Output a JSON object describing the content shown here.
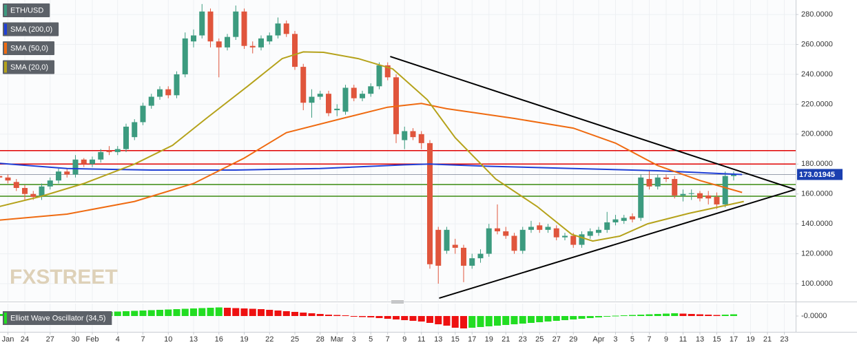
{
  "chart_data": [
    {
      "type": "candlestick",
      "title": "ETH/USD",
      "up_color": "#3c9b7f",
      "down_color": "#e0553c",
      "x": [
        -3,
        -2,
        -1,
        0,
        1,
        2,
        3,
        4,
        5,
        6,
        7,
        8,
        9,
        10,
        11,
        12,
        13,
        14,
        15,
        16,
        17,
        18,
        19,
        20,
        21,
        22,
        23,
        24,
        25,
        26,
        27,
        28,
        29,
        30,
        31,
        32,
        33,
        34,
        35,
        36,
        37,
        38,
        39,
        40,
        41,
        42,
        43,
        44,
        45,
        46,
        47,
        48,
        49,
        50,
        51,
        52,
        53,
        54,
        55,
        56,
        57,
        58,
        59,
        60,
        61,
        62,
        63,
        64,
        65,
        66,
        67,
        68,
        69,
        70,
        71,
        72,
        73,
        74,
        75,
        76,
        77,
        78,
        79,
        80,
        81,
        82,
        83,
        84
      ],
      "open": [
        172,
        171,
        168,
        164,
        160,
        158,
        165,
        169,
        175,
        173,
        183,
        180,
        183,
        189,
        188,
        190,
        198,
        208,
        219,
        225,
        230,
        226,
        240,
        262,
        266,
        282,
        262,
        258,
        265,
        282,
        259,
        258,
        262,
        266,
        274,
        267,
        245,
        221,
        225,
        227,
        216,
        215,
        231,
        224,
        227,
        232,
        246,
        238,
        196,
        202,
        200,
        194,
        136,
        122,
        126,
        124,
        112,
        117,
        120,
        137,
        135,
        132,
        122,
        136,
        139,
        136,
        137,
        131,
        132,
        126,
        132,
        134,
        136,
        141,
        142,
        145,
        144,
        170,
        165,
        171,
        170,
        159,
        160,
        160.5,
        159,
        158,
        153,
        172
      ],
      "high": [
        174,
        173,
        170,
        166,
        162,
        167,
        171,
        177,
        177,
        186,
        184,
        185,
        190,
        192,
        192,
        207,
        210,
        221,
        227,
        232,
        232,
        242,
        268,
        270,
        287,
        284,
        264,
        267,
        286,
        284,
        262,
        266,
        268,
        278,
        276,
        269,
        247,
        230,
        229,
        229,
        220,
        233,
        233,
        229,
        234,
        248,
        248,
        240,
        205,
        204,
        202,
        196,
        138,
        138,
        130,
        126,
        120,
        123,
        140,
        153,
        138,
        134,
        138,
        142,
        141,
        140,
        139,
        134,
        134,
        135,
        137,
        138,
        148,
        146,
        146,
        147,
        173,
        176,
        173,
        173,
        172,
        163,
        163,
        162,
        162,
        161,
        175,
        175
      ],
      "low": [
        169,
        167,
        162,
        156,
        156,
        156,
        163,
        167,
        171,
        171,
        178,
        178,
        181,
        186,
        186,
        188,
        196,
        206,
        217,
        223,
        224,
        224,
        238,
        258,
        264,
        258,
        238,
        256,
        263,
        257,
        254,
        256,
        260,
        264,
        265,
        243,
        216,
        211,
        223,
        212,
        212,
        213,
        222,
        222,
        225,
        230,
        236,
        194,
        190,
        196,
        190,
        110,
        100,
        120,
        120,
        101,
        110,
        114,
        118,
        133,
        130,
        120,
        120,
        134,
        134,
        134,
        129,
        129,
        124,
        124,
        130,
        132,
        134,
        139,
        140,
        141,
        142,
        163,
        163,
        168,
        157,
        155,
        156,
        155,
        153,
        150,
        151,
        169
      ],
      "close": [
        171,
        169,
        164,
        160,
        158,
        165,
        169,
        175,
        173,
        183,
        180,
        183,
        188,
        188,
        190,
        205,
        208,
        219,
        225,
        230,
        226,
        240,
        264,
        266,
        282,
        262,
        258,
        265,
        282,
        259,
        258,
        264,
        266,
        274,
        267,
        245,
        221,
        225,
        227,
        214,
        217,
        231,
        224,
        227,
        232,
        246,
        238,
        200,
        202,
        198,
        194,
        113,
        112,
        136,
        124,
        112,
        117,
        120,
        137,
        135,
        132,
        122,
        136,
        138,
        136,
        138,
        131,
        132,
        126,
        133,
        135,
        136,
        141,
        143,
        144,
        143,
        171,
        165,
        171,
        170,
        159,
        160,
        160.5,
        157,
        157,
        153,
        172,
        173
      ],
      "series": [
        {
          "name": "SMA (200,0)",
          "color": "#1f3fd6",
          "x": [
            -3,
            5,
            15,
            25,
            35,
            45,
            48,
            55,
            65,
            75,
            85
          ],
          "values": [
            180.5,
            177,
            176,
            176,
            177,
            179.5,
            180,
            178.5,
            177,
            175.5,
            173
          ]
        },
        {
          "name": "SMA (50,0)",
          "color": "#ef6a10",
          "x": [
            -3,
            5,
            13,
            20,
            26,
            31,
            38,
            43,
            47,
            50,
            58,
            65,
            70,
            75,
            80,
            85
          ],
          "values": [
            142.5,
            146.5,
            155,
            167,
            184,
            201,
            211,
            218,
            220.5,
            217,
            210.5,
            204,
            194,
            179,
            169,
            161
          ]
        },
        {
          "name": "SMA (20,0)",
          "color": "#b5a21a",
          "x": [
            -3,
            2,
            7,
            13,
            17.5,
            21.5,
            26.4,
            30.5,
            33,
            35.4,
            39.5,
            43.6,
            47.7,
            51,
            55.8,
            60.7,
            64.8,
            67.3,
            70.5,
            73.8,
            78.7,
            85.2
          ],
          "values": [
            151.6,
            158.5,
            167,
            180,
            192.5,
            210.5,
            232,
            250.5,
            255,
            254.7,
            250.5,
            243.6,
            223,
            197.6,
            170,
            151.6,
            133,
            128.5,
            131.8,
            140,
            147,
            155
          ]
        }
      ],
      "hlines": [
        {
          "value": 189,
          "color": "#e00000"
        },
        {
          "value": 180,
          "color": "#e00000"
        },
        {
          "value": 166.3,
          "color": "#3b8a10"
        },
        {
          "value": 158.5,
          "color": "#3b8a10"
        }
      ],
      "trendlines": [
        {
          "x": [
            43.3,
            91.3
          ],
          "y": [
            251.9,
            163
          ],
          "color": "#000000"
        },
        {
          "x": [
            49.1,
            91.3
          ],
          "y": [
            90.3,
            163
          ],
          "color": "#000000"
        }
      ],
      "last_price": 173.01945,
      "last_price_color": "#1a3fb0",
      "xlim": [
        -2.94,
        91.35
      ],
      "ylim": [
        88.5,
        289.7
      ],
      "yticks": [
        {
          "value": 100,
          "label": "100.0000"
        },
        {
          "value": 120,
          "label": "120.0000"
        },
        {
          "value": 140,
          "label": "140.0000"
        },
        {
          "value": 160,
          "label": "160.0000"
        },
        {
          "value": 180,
          "label": "180.0000"
        },
        {
          "value": 200,
          "label": "200.0000"
        },
        {
          "value": 220,
          "label": "220.0000"
        },
        {
          "value": 240,
          "label": "240.0000"
        },
        {
          "value": 260,
          "label": "260.0000"
        },
        {
          "value": 280,
          "label": "280.0000"
        }
      ],
      "xticks": [
        {
          "value": -2,
          "label": "Jan"
        },
        {
          "value": 0,
          "label": "24"
        },
        {
          "value": 3,
          "label": "27"
        },
        {
          "value": 6,
          "label": "30"
        },
        {
          "value": 8,
          "label": "Feb"
        },
        {
          "value": 11,
          "label": "4"
        },
        {
          "value": 14,
          "label": "7"
        },
        {
          "value": 17,
          "label": "10"
        },
        {
          "value": 20,
          "label": "13"
        },
        {
          "value": 23,
          "label": "16"
        },
        {
          "value": 26,
          "label": "19"
        },
        {
          "value": 29,
          "label": "22"
        },
        {
          "value": 32,
          "label": "25"
        },
        {
          "value": 35,
          "label": "28"
        },
        {
          "value": 37,
          "label": "Mar"
        },
        {
          "value": 39,
          "label": "3"
        },
        {
          "value": 41,
          "label": "5"
        },
        {
          "value": 43,
          "label": "7"
        },
        {
          "value": 45,
          "label": "9"
        },
        {
          "value": 47,
          "label": "11"
        },
        {
          "value": 49,
          "label": "13"
        },
        {
          "value": 51,
          "label": "15"
        },
        {
          "value": 53,
          "label": "17"
        },
        {
          "value": 55,
          "label": "19"
        },
        {
          "value": 57,
          "label": "21"
        },
        {
          "value": 59,
          "label": "23"
        },
        {
          "value": 61,
          "label": "25"
        },
        {
          "value": 63,
          "label": "27"
        },
        {
          "value": 65,
          "label": "29"
        },
        {
          "value": 68,
          "label": "Apr"
        },
        {
          "value": 70,
          "label": "3"
        },
        {
          "value": 72,
          "label": "5"
        },
        {
          "value": 74,
          "label": "7"
        },
        {
          "value": 76,
          "label": "9"
        },
        {
          "value": 78,
          "label": "11"
        },
        {
          "value": 80,
          "label": "13"
        },
        {
          "value": 82,
          "label": "15"
        },
        {
          "value": 84,
          "label": "17"
        },
        {
          "value": 86,
          "label": "19"
        },
        {
          "value": 88,
          "label": "21"
        },
        {
          "value": 90,
          "label": "23"
        }
      ],
      "grid": true,
      "watermark": "FXSTREET"
    },
    {
      "type": "bar",
      "title": "Elliott Wave Oscillator (34,5)",
      "up_color": "#22dd22",
      "down_color": "#ee1111",
      "x": [
        -3,
        -2,
        -1,
        0,
        1,
        2,
        3,
        4,
        5,
        6,
        7,
        8,
        9,
        10,
        11,
        12,
        13,
        14,
        15,
        16,
        17,
        18,
        19,
        20,
        21,
        22,
        23,
        24,
        25,
        26,
        27,
        28,
        29,
        30,
        31,
        32,
        33,
        34,
        35,
        36,
        37,
        38,
        39,
        40,
        41,
        42,
        43,
        44,
        45,
        46,
        47,
        48,
        49,
        50,
        51,
        52,
        53,
        54,
        55,
        56,
        57,
        58,
        59,
        60,
        61,
        62,
        63,
        64,
        65,
        66,
        67,
        68,
        69,
        70,
        71,
        72,
        73,
        74,
        75,
        76,
        77,
        78,
        79,
        80,
        81,
        82,
        83,
        84
      ],
      "values": [
        3,
        2.5,
        2,
        1.5,
        1.5,
        2,
        2.5,
        3,
        3.5,
        4,
        4.5,
        5,
        5.5,
        6,
        6.5,
        7,
        7.5,
        8,
        8.5,
        9,
        9.5,
        10,
        10.5,
        11,
        11.5,
        12,
        12.5,
        12,
        11.5,
        11,
        10.5,
        10,
        9,
        8,
        7,
        6,
        5,
        4,
        3,
        2,
        1.5,
        1,
        -1,
        -1.5,
        -2,
        -3,
        -4,
        -5,
        -6,
        -7,
        -8,
        -10,
        -12,
        -14,
        -17,
        -18,
        -17,
        -16,
        -15,
        -14,
        -13,
        -12,
        -11,
        -10,
        -9,
        -8,
        -7,
        -6,
        -5,
        -4,
        -3,
        -2,
        -1,
        0.5,
        1,
        1.5,
        2,
        2.5,
        3,
        3.5,
        4,
        3.5,
        3,
        2.5,
        2,
        1.5,
        2,
        2.5
      ],
      "ylim": [
        -20,
        15
      ],
      "yticks": [
        {
          "value": 0,
          "label": "-0.0000"
        }
      ]
    }
  ]
}
